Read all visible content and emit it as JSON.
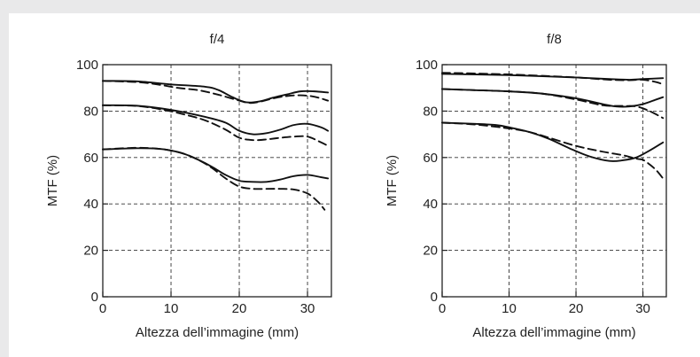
{
  "chart_data": [
    {
      "type": "line",
      "title": "f/4",
      "xlabel": "Altezza dell’immagine (mm)",
      "ylabel": "MTF (%)",
      "xlim": [
        0,
        33.5
      ],
      "ylim": [
        0,
        100
      ],
      "xticks": [
        0,
        10,
        20,
        30
      ],
      "yticks": [
        0,
        20,
        40,
        60,
        80,
        100
      ],
      "grid": true,
      "series": [
        {
          "style": "solid",
          "points": [
            [
              0,
              93
            ],
            [
              5,
              92.8
            ],
            [
              10,
              91.5
            ],
            [
              15,
              90.5
            ],
            [
              17,
              89
            ],
            [
              19,
              86
            ],
            [
              21,
              83.8
            ],
            [
              23,
              84.2
            ],
            [
              25,
              85.8
            ],
            [
              27,
              87.2
            ],
            [
              29,
              88.5
            ],
            [
              31,
              88.5
            ],
            [
              33,
              88
            ]
          ]
        },
        {
          "style": "dashed",
          "points": [
            [
              0,
              93
            ],
            [
              5,
              92.5
            ],
            [
              8,
              91.5
            ],
            [
              11,
              90
            ],
            [
              14,
              89
            ],
            [
              17,
              87
            ],
            [
              20,
              84.5
            ],
            [
              21.5,
              83.5
            ],
            [
              23,
              84
            ],
            [
              25,
              85.5
            ],
            [
              27,
              86.5
            ],
            [
              29,
              86.8
            ],
            [
              31,
              86.2
            ],
            [
              33,
              84.5
            ]
          ]
        },
        {
          "style": "solid",
          "points": [
            [
              0,
              82.5
            ],
            [
              5,
              82.3
            ],
            [
              10,
              80.5
            ],
            [
              15,
              77.5
            ],
            [
              18,
              75
            ],
            [
              20,
              71.5
            ],
            [
              22,
              70
            ],
            [
              24,
              70.5
            ],
            [
              26,
              72
            ],
            [
              28,
              74
            ],
            [
              30,
              74.5
            ],
            [
              32,
              73
            ],
            [
              33,
              71.5
            ]
          ]
        },
        {
          "style": "dashed",
          "points": [
            [
              0,
              82.5
            ],
            [
              5,
              82.2
            ],
            [
              9,
              80.5
            ],
            [
              12,
              78.5
            ],
            [
              15,
              76
            ],
            [
              18,
              72
            ],
            [
              20,
              68.5
            ],
            [
              22,
              67.5
            ],
            [
              24,
              67.8
            ],
            [
              26,
              68.5
            ],
            [
              28,
              69
            ],
            [
              30,
              69
            ],
            [
              32,
              66.5
            ],
            [
              33,
              65
            ]
          ]
        },
        {
          "style": "solid",
          "points": [
            [
              0,
              63.5
            ],
            [
              5,
              64
            ],
            [
              8,
              63.8
            ],
            [
              10,
              63
            ],
            [
              12,
              61.5
            ],
            [
              14,
              59
            ],
            [
              16,
              56
            ],
            [
              18,
              52.5
            ],
            [
              20,
              50
            ],
            [
              22,
              49.5
            ],
            [
              24,
              49.5
            ],
            [
              26,
              50.5
            ],
            [
              28,
              52
            ],
            [
              30,
              52.5
            ],
            [
              32,
              51.5
            ],
            [
              33,
              51
            ]
          ]
        },
        {
          "style": "dashed",
          "points": [
            [
              0,
              63.5
            ],
            [
              5,
              64.2
            ],
            [
              8,
              63.8
            ],
            [
              10,
              63
            ],
            [
              12,
              61.5
            ],
            [
              14,
              59
            ],
            [
              16,
              55.5
            ],
            [
              18,
              51
            ],
            [
              20,
              47.5
            ],
            [
              22,
              46.5
            ],
            [
              24,
              46.5
            ],
            [
              26,
              46.5
            ],
            [
              28,
              46.2
            ],
            [
              30,
              44.5
            ],
            [
              31.5,
              41
            ],
            [
              32.5,
              37.5
            ]
          ]
        }
      ]
    },
    {
      "type": "line",
      "title": "f/8",
      "xlabel": "Altezza dell’immagine (mm)",
      "ylabel": "MTF (%)",
      "xlim": [
        0,
        33.5
      ],
      "ylim": [
        0,
        100
      ],
      "xticks": [
        0,
        10,
        20,
        30
      ],
      "yticks": [
        0,
        20,
        40,
        60,
        80,
        100
      ],
      "grid": true,
      "series": [
        {
          "style": "solid",
          "points": [
            [
              0,
              96
            ],
            [
              5,
              95.8
            ],
            [
              10,
              95.5
            ],
            [
              15,
              95
            ],
            [
              20,
              94.5
            ],
            [
              25,
              93.8
            ],
            [
              28,
              93.5
            ],
            [
              30,
              93.8
            ],
            [
              33,
              94.2
            ]
          ]
        },
        {
          "style": "dashed",
          "points": [
            [
              0,
              96.5
            ],
            [
              5,
              96.2
            ],
            [
              10,
              95.8
            ],
            [
              15,
              95.2
            ],
            [
              20,
              94.5
            ],
            [
              25,
              93.5
            ],
            [
              28,
              93.3
            ],
            [
              30,
              93.5
            ],
            [
              32,
              92.5
            ],
            [
              33,
              91.5
            ]
          ]
        },
        {
          "style": "solid",
          "points": [
            [
              0,
              89.5
            ],
            [
              5,
              89
            ],
            [
              10,
              88.5
            ],
            [
              15,
              87.5
            ],
            [
              20,
              85.5
            ],
            [
              24,
              83
            ],
            [
              26,
              82
            ],
            [
              28,
              82
            ],
            [
              30,
              83
            ],
            [
              32,
              85
            ],
            [
              33,
              86
            ]
          ]
        },
        {
          "style": "dashed",
          "points": [
            [
              0,
              89.5
            ],
            [
              5,
              89
            ],
            [
              10,
              88.5
            ],
            [
              15,
              87.5
            ],
            [
              20,
              85
            ],
            [
              24,
              82.5
            ],
            [
              27,
              82.2
            ],
            [
              29,
              82
            ],
            [
              31,
              80
            ],
            [
              33,
              77
            ]
          ]
        },
        {
          "style": "solid",
          "points": [
            [
              0,
              75
            ],
            [
              5,
              74.5
            ],
            [
              8,
              74
            ],
            [
              10,
              73
            ],
            [
              13,
              71
            ],
            [
              16,
              68
            ],
            [
              19,
              64
            ],
            [
              22,
              60.5
            ],
            [
              25,
              58.5
            ],
            [
              27,
              58.8
            ],
            [
              29,
              60
            ],
            [
              31,
              63
            ],
            [
              33,
              66.5
            ]
          ]
        },
        {
          "style": "dashed",
          "points": [
            [
              0,
              75
            ],
            [
              5,
              74.2
            ],
            [
              10,
              72.5
            ],
            [
              13,
              71
            ],
            [
              16,
              68.5
            ],
            [
              20,
              65
            ],
            [
              24,
              62.5
            ],
            [
              27,
              61
            ],
            [
              29,
              59.5
            ],
            [
              30,
              59
            ],
            [
              31,
              57
            ],
            [
              32,
              54.5
            ],
            [
              33,
              51
            ]
          ]
        }
      ]
    }
  ]
}
